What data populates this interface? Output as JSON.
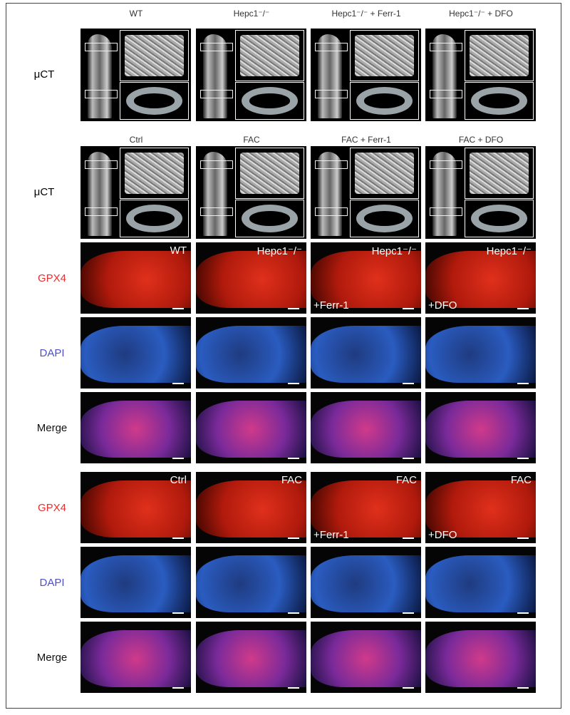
{
  "ct_rows": [
    {
      "label": "μCT",
      "columns": [
        "WT",
        "Hepc1⁻/⁻",
        "Hepc1⁻/⁻ + Ferr-1",
        "Hepc1⁻/⁻ + DFO"
      ]
    },
    {
      "label": "μCT",
      "columns": [
        "Ctrl",
        "FAC",
        "FAC + Ferr-1",
        "FAC + DFO"
      ]
    }
  ],
  "if_blocks": [
    {
      "rows": [
        "GPX4",
        "DAPI",
        "Merge"
      ],
      "columns": [
        {
          "top": "WT"
        },
        {
          "top": "Hepc1⁻/⁻"
        },
        {
          "top": "Hepc1⁻/⁻",
          "bottom": "+Ferr-1"
        },
        {
          "top": "Hepc1⁻/⁻",
          "bottom": "+DFO"
        }
      ]
    },
    {
      "rows": [
        "GPX4",
        "DAPI",
        "Merge"
      ],
      "columns": [
        {
          "top": "Ctrl"
        },
        {
          "top": "FAC"
        },
        {
          "top": "FAC",
          "bottom": "+Ferr-1"
        },
        {
          "top": "FAC",
          "bottom": "+DFO"
        }
      ]
    }
  ]
}
